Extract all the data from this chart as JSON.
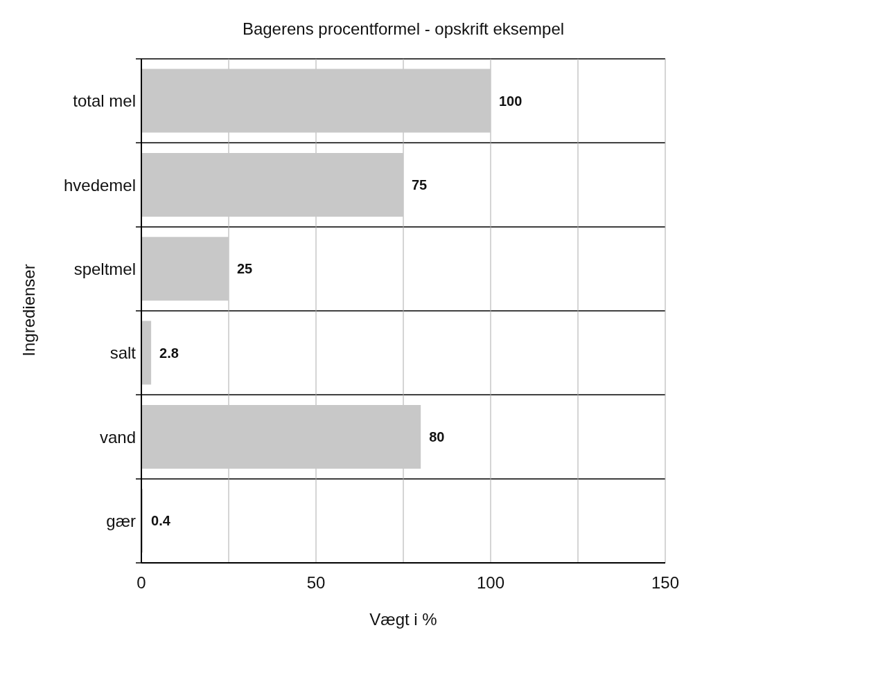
{
  "chart_data": {
    "type": "bar",
    "orientation": "horizontal",
    "title": "Bagerens procentformel - opskrift eksempel",
    "xlabel": "Vægt i %",
    "ylabel": "Ingredienser",
    "categories": [
      "total mel",
      "hvedemel",
      "speltmel",
      "salt",
      "vand",
      "gær"
    ],
    "values": [
      100,
      75,
      25,
      2.8,
      80,
      0.4
    ],
    "color": "#c8c8c8",
    "xlim": [
      0,
      150
    ],
    "xticks": [
      0,
      {
        "value": 25,
        "label": null
      },
      50,
      {
        "value": 75,
        "label": null
      },
      100,
      {
        "value": 125,
        "label": null
      },
      150
    ],
    "grid": true,
    "data_labels": true
  }
}
